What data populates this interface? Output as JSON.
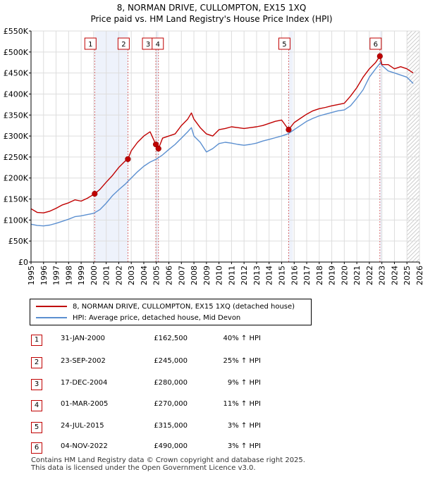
{
  "chart_data": {
    "type": "line",
    "title": "8, NORMAN DRIVE, CULLOMPTON, EX15 1XQ",
    "subtitle": "Price paid vs. HM Land Registry's House Price Index (HPI)",
    "xlabel": "",
    "ylabel": "",
    "xlim": [
      1995,
      2026
    ],
    "ylim": [
      0,
      550000
    ],
    "grid": true,
    "x_ticks": [
      "1995",
      "1996",
      "1997",
      "1998",
      "1999",
      "2000",
      "2001",
      "2002",
      "2003",
      "2004",
      "2005",
      "2006",
      "2007",
      "2008",
      "2009",
      "2010",
      "2011",
      "2012",
      "2013",
      "2014",
      "2015",
      "2016",
      "2017",
      "2018",
      "2019",
      "2020",
      "2021",
      "2022",
      "2023",
      "2024",
      "2025",
      "2026"
    ],
    "y_ticks": [
      {
        "value": 0,
        "label": "£0"
      },
      {
        "value": 50000,
        "label": "£50K"
      },
      {
        "value": 100000,
        "label": "£100K"
      },
      {
        "value": 150000,
        "label": "£150K"
      },
      {
        "value": 200000,
        "label": "£200K"
      },
      {
        "value": 250000,
        "label": "£250K"
      },
      {
        "value": 300000,
        "label": "£300K"
      },
      {
        "value": 350000,
        "label": "£350K"
      },
      {
        "value": 400000,
        "label": "£400K"
      },
      {
        "value": 450000,
        "label": "£450K"
      },
      {
        "value": 500000,
        "label": "£500K"
      },
      {
        "value": 550000,
        "label": "£550K"
      }
    ],
    "series": [
      {
        "name": "8, NORMAN DRIVE, CULLOMPTON, EX15 1XQ (detached house)",
        "color": "#c00000",
        "x": [
          1995.0,
          1995.5,
          1996.0,
          1996.5,
          1997.0,
          1997.5,
          1998.0,
          1998.5,
          1999.0,
          1999.5,
          2000.08,
          2000.5,
          2001.0,
          2001.5,
          2002.0,
          2002.5,
          2002.73,
          2003.0,
          2003.5,
          2004.0,
          2004.5,
          2004.96,
          2005.17,
          2005.5,
          2006.0,
          2006.5,
          2007.0,
          2007.5,
          2007.8,
          2008.0,
          2008.5,
          2009.0,
          2009.5,
          2010.0,
          2010.5,
          2011.0,
          2011.5,
          2012.0,
          2012.5,
          2013.0,
          2013.5,
          2014.0,
          2014.5,
          2015.0,
          2015.56,
          2016.0,
          2016.5,
          2017.0,
          2017.5,
          2018.0,
          2018.5,
          2019.0,
          2019.5,
          2020.0,
          2020.5,
          2021.0,
          2021.5,
          2022.0,
          2022.5,
          2022.84,
          2023.0,
          2023.5,
          2024.0,
          2024.5,
          2025.0,
          2025.5
        ],
        "values": [
          127000,
          118000,
          117000,
          121000,
          128000,
          136000,
          141000,
          148000,
          145000,
          152000,
          162500,
          173000,
          190000,
          206000,
          225000,
          240000,
          245000,
          265000,
          285000,
          300000,
          310000,
          280000,
          270000,
          295000,
          300000,
          305000,
          325000,
          340000,
          355000,
          340000,
          320000,
          305000,
          300000,
          315000,
          318000,
          322000,
          320000,
          318000,
          320000,
          322000,
          325000,
          330000,
          335000,
          338000,
          315000,
          332000,
          342000,
          352000,
          360000,
          365000,
          368000,
          372000,
          375000,
          378000,
          395000,
          415000,
          440000,
          460000,
          475000,
          490000,
          470000,
          470000,
          460000,
          465000,
          460000,
          450000
        ]
      },
      {
        "name": "HPI: Average price, detached house, Mid Devon",
        "color": "#5b8fd0",
        "x": [
          1995.0,
          1995.5,
          1996.0,
          1996.5,
          1997.0,
          1997.5,
          1998.0,
          1998.5,
          1999.0,
          1999.5,
          2000.0,
          2000.5,
          2001.0,
          2001.5,
          2002.0,
          2002.5,
          2003.0,
          2003.5,
          2004.0,
          2004.5,
          2005.0,
          2005.5,
          2006.0,
          2006.5,
          2007.0,
          2007.5,
          2007.8,
          2008.0,
          2008.5,
          2009.0,
          2009.5,
          2010.0,
          2010.5,
          2011.0,
          2011.5,
          2012.0,
          2012.5,
          2013.0,
          2013.5,
          2014.0,
          2014.5,
          2015.0,
          2015.5,
          2016.0,
          2016.5,
          2017.0,
          2017.5,
          2018.0,
          2018.5,
          2019.0,
          2019.5,
          2020.0,
          2020.5,
          2021.0,
          2021.5,
          2022.0,
          2022.5,
          2022.9,
          2023.0,
          2023.5,
          2024.0,
          2024.5,
          2025.0,
          2025.5
        ],
        "values": [
          90000,
          87000,
          86000,
          88000,
          92000,
          97000,
          102000,
          108000,
          110000,
          113000,
          116000,
          125000,
          140000,
          158000,
          172000,
          185000,
          200000,
          215000,
          228000,
          238000,
          245000,
          255000,
          268000,
          280000,
          295000,
          310000,
          320000,
          300000,
          285000,
          262000,
          270000,
          282000,
          285000,
          283000,
          280000,
          278000,
          280000,
          283000,
          288000,
          292000,
          296000,
          300000,
          305000,
          315000,
          325000,
          335000,
          342000,
          348000,
          352000,
          356000,
          360000,
          362000,
          372000,
          390000,
          410000,
          440000,
          460000,
          475000,
          468000,
          455000,
          450000,
          445000,
          440000,
          425000
        ]
      }
    ],
    "sale_markers": [
      {
        "label": "1",
        "x": 2000.08,
        "value": 162500
      },
      {
        "label": "2",
        "x": 2002.73,
        "value": 245000
      },
      {
        "label": "3",
        "x": 2004.96,
        "value": 280000
      },
      {
        "label": "4",
        "x": 2005.17,
        "value": 270000
      },
      {
        "label": "5",
        "x": 2015.56,
        "value": 315000
      },
      {
        "label": "6",
        "x": 2022.84,
        "value": 490000
      }
    ],
    "shaded_ranges": [
      [
        2000.08,
        2002.73
      ],
      [
        2004.96,
        2005.17
      ],
      [
        2015.56,
        2015.9
      ],
      [
        2022.84,
        2023.0
      ]
    ],
    "hatched_from": 2025.0
  },
  "legend": {
    "property": "8, NORMAN DRIVE, CULLOMPTON, EX15 1XQ (detached house)",
    "hpi": "HPI: Average price, detached house, Mid Devon"
  },
  "sales": [
    {
      "num": "1",
      "date": "31-JAN-2000",
      "price": "£162,500",
      "hpi": "40% ↑ HPI"
    },
    {
      "num": "2",
      "date": "23-SEP-2002",
      "price": "£245,000",
      "hpi": "25% ↑ HPI"
    },
    {
      "num": "3",
      "date": "17-DEC-2004",
      "price": "£280,000",
      "hpi": "9% ↑ HPI"
    },
    {
      "num": "4",
      "date": "01-MAR-2005",
      "price": "£270,000",
      "hpi": "11% ↑ HPI"
    },
    {
      "num": "5",
      "date": "24-JUL-2015",
      "price": "£315,000",
      "hpi": "3% ↑ HPI"
    },
    {
      "num": "6",
      "date": "04-NOV-2022",
      "price": "£490,000",
      "hpi": "3% ↑ HPI"
    }
  ],
  "footer": {
    "line1": "Contains HM Land Registry data © Crown copyright and database right 2025.",
    "line2": "This data is licensed under the Open Government Licence v3.0."
  },
  "colors": {
    "property": "#c00000",
    "hpi": "#5b8fd0",
    "shade": "#eef2fb",
    "grid": "#dddddd"
  }
}
